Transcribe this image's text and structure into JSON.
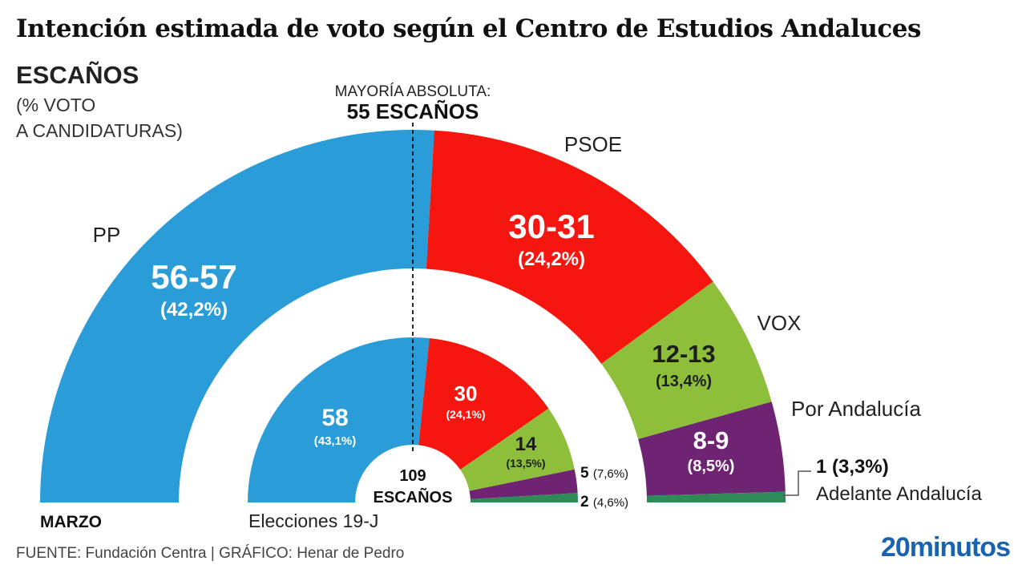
{
  "title": "Intención estimada de voto según el Centro de Estudios Andaluces",
  "subtitle": {
    "head": "ESCAÑOS",
    "line1": "(% VOTO",
    "line2": "A CANDIDATURAS)"
  },
  "majority": {
    "line1": "MAYORÍA ABSOLUTA:",
    "line2": "55 ESCAÑOS"
  },
  "outer_label": "MARZO",
  "inner_label": "Elecciones 19-J",
  "center": {
    "line1": "109",
    "line2": "ESCAÑOS"
  },
  "footer": "FUENTE: Fundación Centra  |  GRÁFICO: Henar de Pedro",
  "brand": "20minutos",
  "colors": {
    "PP": "#2a9dd9",
    "PSOE": "#f5170f",
    "VOX": "#8dbf3b",
    "Por Andalucía": "#6e2472",
    "Adelante Andalucía": "#2e8b57"
  },
  "chart_data": {
    "type": "pie",
    "subtype": "parliament-semicircle",
    "total_seats": 109,
    "majority_seats": 55,
    "rings": [
      {
        "name": "MARZO",
        "series": [
          {
            "party": "PP",
            "seats_label": "56-57",
            "seats": 56.5,
            "vote_label": "(42,2%)",
            "vote_pct": 42.2
          },
          {
            "party": "PSOE",
            "seats_label": "30-31",
            "seats": 30.5,
            "vote_label": "(24,2%)",
            "vote_pct": 24.2
          },
          {
            "party": "VOX",
            "seats_label": "12-13",
            "seats": 12.5,
            "vote_label": "(13,4%)",
            "vote_pct": 13.4
          },
          {
            "party": "Por Andalucía",
            "seats_label": "8-9",
            "seats": 8.5,
            "vote_label": "(8,5%)",
            "vote_pct": 8.5
          },
          {
            "party": "Adelante Andalucía",
            "seats_label": "1 (3,3%)",
            "seats": 1,
            "vote_pct": 3.3
          }
        ]
      },
      {
        "name": "Elecciones 19-J",
        "series": [
          {
            "party": "PP",
            "seats_label": "58",
            "seats": 58,
            "vote_label": "(43,1%)",
            "vote_pct": 43.1
          },
          {
            "party": "PSOE",
            "seats_label": "30",
            "seats": 30,
            "vote_label": "(24,1%)",
            "vote_pct": 24.1
          },
          {
            "party": "VOX",
            "seats_label": "14",
            "seats": 14,
            "vote_label": "(13,5%)",
            "vote_pct": 13.5
          },
          {
            "party": "Por Andalucía",
            "seats_label": "5",
            "seats": 5,
            "vote_label": "(7,6%)",
            "vote_pct": 7.6
          },
          {
            "party": "Adelante Andalucía",
            "seats_label": "2",
            "seats": 2,
            "vote_label": "(4,6%)",
            "vote_pct": 4.6
          }
        ]
      }
    ]
  }
}
